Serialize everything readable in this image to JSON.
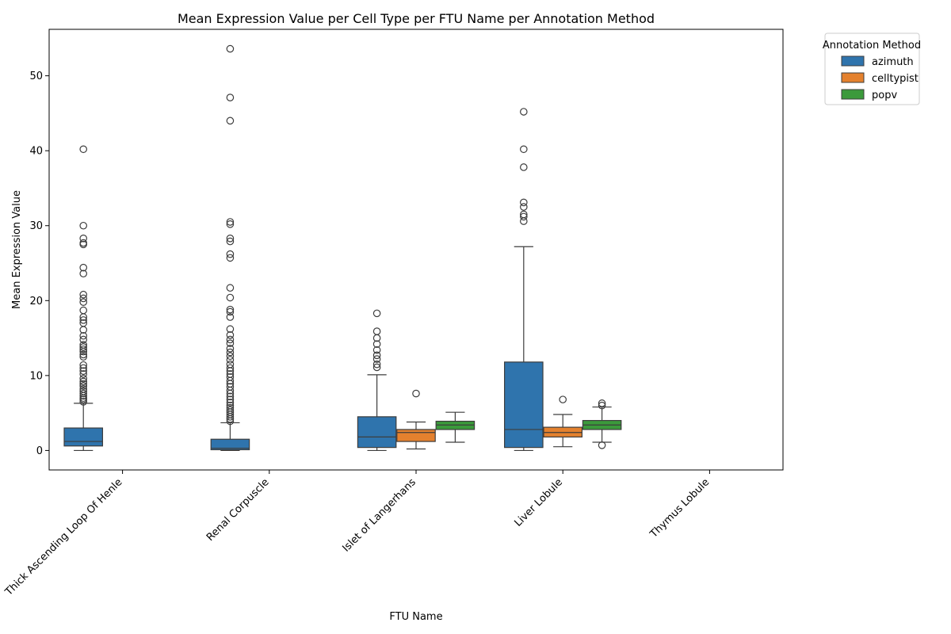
{
  "chart_data": {
    "type": "box",
    "title": "Mean Expression Value per Cell Type per FTU Name per Annotation Method",
    "xlabel": "FTU Name",
    "ylabel": "Mean Expression Value",
    "categories": [
      "Thick Ascending Loop Of Henle",
      "Renal Corpuscle",
      "Islet of Langerhans",
      "Liver Lobule",
      "Thymus Lobule"
    ],
    "ylim": [
      -2.6,
      56.2
    ],
    "yticks": [
      0,
      10,
      20,
      30,
      40,
      50
    ],
    "grid": false,
    "legend": {
      "title": "Annotation Method",
      "placement": "outside-top-right"
    },
    "colors": {
      "azimuth": "#2f74ad",
      "celltypist": "#e4812e",
      "popv": "#3b9a3b",
      "edge": "#3d3d3d"
    },
    "series": [
      {
        "name": "azimuth",
        "boxes": [
          {
            "category": "Thick Ascending Loop Of Henle",
            "whisker_low": 0.0,
            "q1": 0.6,
            "median": 1.2,
            "q3": 3.0,
            "whisker_high": 6.3,
            "outliers": [
              40.2,
              30.0,
              28.3,
              27.7,
              27.5,
              24.4,
              23.6,
              20.8,
              20.3,
              19.8,
              18.7,
              17.8,
              17.4,
              17.0,
              16.1,
              15.3,
              14.8,
              14.1,
              13.8,
              13.5,
              13.2,
              12.8,
              12.5,
              11.4,
              11.0,
              10.6,
              10.2,
              9.6,
              9.2,
              8.9,
              8.6,
              8.2,
              7.9,
              7.6,
              7.3,
              7.0,
              6.8,
              6.5
            ]
          },
          {
            "category": "Renal Corpuscle",
            "whisker_low": 0.0,
            "q1": 0.1,
            "median": 0.3,
            "q3": 1.5,
            "whisker_high": 3.7,
            "outliers": [
              53.6,
              47.1,
              44.0,
              30.5,
              30.2,
              28.3,
              27.9,
              26.2,
              25.7,
              21.7,
              20.4,
              18.8,
              18.5,
              17.8,
              16.2,
              15.4,
              14.8,
              14.3,
              13.6,
              13.1,
              12.6,
              12.1,
              11.5,
              11.0,
              10.6,
              10.2,
              9.8,
              9.3,
              8.9,
              8.5,
              8.0,
              7.6,
              7.2,
              6.8,
              6.4,
              6.0,
              5.7,
              5.4,
              5.1,
              4.8,
              4.5,
              4.2,
              3.9
            ]
          },
          {
            "category": "Islet of Langerhans",
            "whisker_low": 0.0,
            "q1": 0.4,
            "median": 1.8,
            "q3": 4.5,
            "whisker_high": 10.1,
            "outliers": [
              18.3,
              15.9,
              15.0,
              14.2,
              13.4,
              12.7,
              12.2,
              11.5,
              11.1
            ]
          },
          {
            "category": "Liver Lobule",
            "whisker_low": 0.0,
            "q1": 0.4,
            "median": 2.8,
            "q3": 11.8,
            "whisker_high": 27.2,
            "outliers": [
              45.2,
              40.2,
              37.8,
              33.1,
              32.5,
              31.5,
              31.2,
              30.6
            ]
          }
        ]
      },
      {
        "name": "celltypist",
        "boxes": [
          {
            "category": "Islet of Langerhans",
            "whisker_low": 0.2,
            "q1": 1.2,
            "median": 2.4,
            "q3": 2.8,
            "whisker_high": 3.8,
            "outliers": [
              7.6
            ]
          },
          {
            "category": "Liver Lobule",
            "whisker_low": 0.5,
            "q1": 1.8,
            "median": 2.4,
            "q3": 3.1,
            "whisker_high": 4.8,
            "outliers": [
              6.8
            ]
          }
        ]
      },
      {
        "name": "popv",
        "boxes": [
          {
            "category": "Islet of Langerhans",
            "whisker_low": 1.1,
            "q1": 2.8,
            "median": 3.4,
            "q3": 3.9,
            "whisker_high": 5.1,
            "outliers": []
          },
          {
            "category": "Liver Lobule",
            "whisker_low": 1.1,
            "q1": 2.8,
            "median": 3.4,
            "q3": 4.0,
            "whisker_high": 5.8,
            "outliers": [
              6.3,
              6.0,
              0.7
            ]
          }
        ]
      }
    ]
  }
}
